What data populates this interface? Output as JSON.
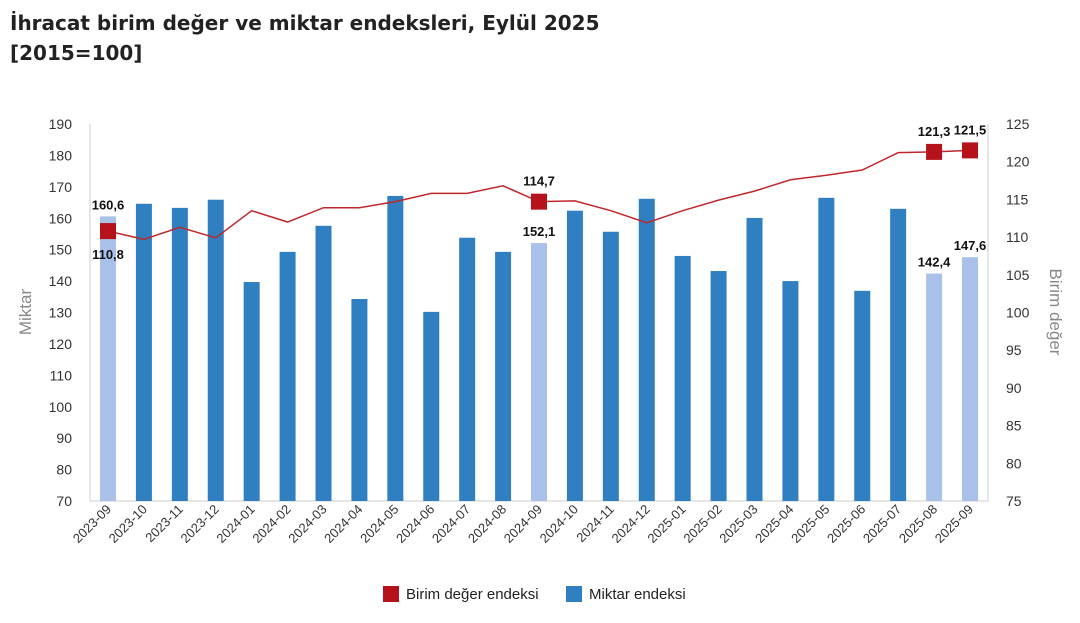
{
  "chart_data": {
    "type": "bar",
    "title": "İhracat birim değer ve miktar endeksleri, Eylül 2025",
    "subtitle": "[2015=100]",
    "ylabel": "Miktar",
    "y2label": "Birim değer",
    "ylim": [
      70,
      190
    ],
    "y2lim": [
      75,
      125
    ],
    "yticks": [
      70,
      80,
      90,
      100,
      110,
      120,
      130,
      140,
      150,
      160,
      170,
      180,
      190
    ],
    "y2ticks": [
      75,
      80,
      85,
      90,
      95,
      100,
      105,
      110,
      115,
      120,
      125
    ],
    "legend_position": "bottom",
    "categories": [
      "2023-09",
      "2023-10",
      "2023-11",
      "2023-12",
      "2024-01",
      "2024-02",
      "2024-03",
      "2024-04",
      "2024-05",
      "2024-06",
      "2024-07",
      "2024-08",
      "2024-09",
      "2024-10",
      "2024-11",
      "2024-12",
      "2025-01",
      "2025-02",
      "2025-03",
      "2025-04",
      "2025-05",
      "2025-06",
      "2025-07",
      "2025-08",
      "2025-09"
    ],
    "series": [
      {
        "name": "Miktar endeksi",
        "type": "bar",
        "axis": "left",
        "color": "#2f7fc1",
        "highlight_color": "#a9c1e8",
        "values": [
          160.6,
          164.6,
          163.3,
          165.9,
          139.7,
          149.3,
          157.6,
          134.3,
          167.1,
          130.2,
          153.8,
          149.3,
          152.1,
          162.4,
          155.7,
          166.2,
          148.0,
          143.2,
          160.1,
          140.0,
          166.5,
          136.9,
          163.0,
          142.4,
          147.6
        ],
        "highlighted": [
          "2023-09",
          "2024-09",
          "2025-08",
          "2025-09"
        ]
      },
      {
        "name": "Birim değer endeksi",
        "type": "line",
        "axis": "right",
        "color": "#c0272d",
        "marker_color": "#b5121b",
        "values": [
          110.8,
          109.7,
          111.3,
          109.9,
          113.5,
          112.0,
          113.9,
          113.9,
          114.7,
          115.8,
          115.8,
          116.8,
          114.7,
          114.8,
          113.5,
          111.9,
          113.5,
          114.9,
          116.1,
          117.6,
          118.2,
          118.9,
          121.2,
          121.3,
          121.5
        ],
        "markers": [
          "2023-09",
          "2024-09",
          "2025-08",
          "2025-09"
        ]
      }
    ],
    "data_labels": {
      "bars": [
        {
          "category": "2023-09",
          "text": "160,6"
        },
        {
          "category": "2024-09",
          "text": "152,1"
        },
        {
          "category": "2025-08",
          "text": "142,4"
        },
        {
          "category": "2025-09",
          "text": "147,6"
        }
      ],
      "line": [
        {
          "category": "2023-09",
          "text": "110,8"
        },
        {
          "category": "2024-09",
          "text": "114,7"
        },
        {
          "category": "2025-08",
          "text": "121,3"
        },
        {
          "category": "2025-09",
          "text": "121,5"
        }
      ]
    }
  }
}
